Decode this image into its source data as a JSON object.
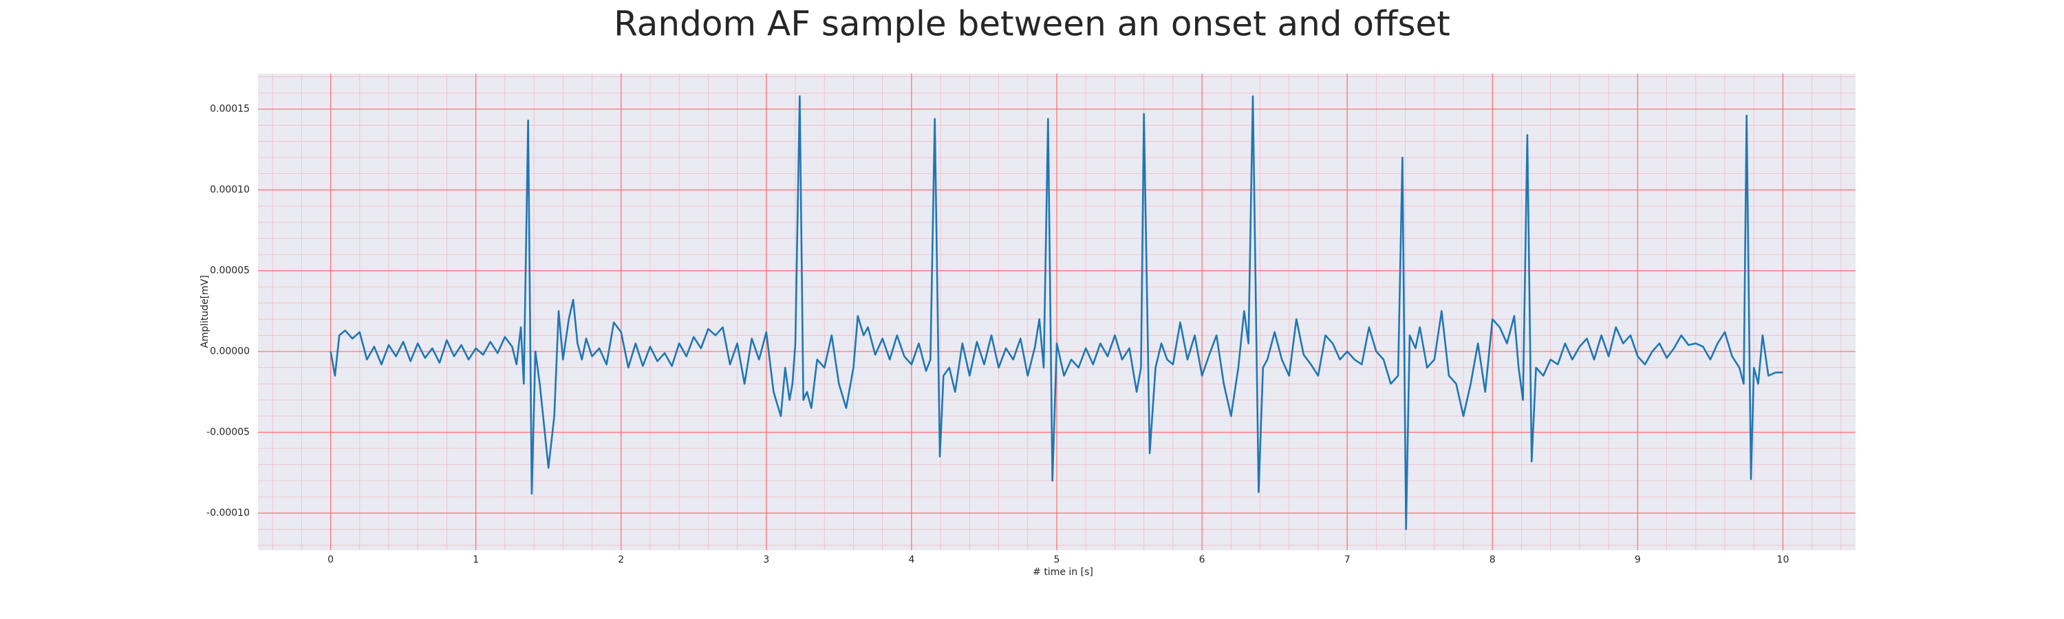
{
  "chart_data": {
    "type": "line",
    "title": "Random AF sample between an onset and offset",
    "xlabel": "# time in [s]",
    "ylabel": "Amplitude[mV]",
    "xlim": [
      -0.5,
      10.5
    ],
    "ylim": [
      -0.000123,
      0.000172
    ],
    "xticks": [
      0,
      1,
      2,
      3,
      4,
      5,
      6,
      7,
      8,
      9,
      10
    ],
    "yticks": [
      {
        "value": -0.0001,
        "label": "-0.00010"
      },
      -5e-05,
      {
        "value": 0,
        "label": "0.00000"
      },
      5e-05,
      {
        "value": 0.0001,
        "label": "0.00010"
      },
      0.00015
    ],
    "grid": true,
    "minor_grid": true,
    "x": [
      0,
      0.03,
      0.06,
      0.1,
      0.15,
      0.2,
      0.25,
      0.3,
      0.35,
      0.4,
      0.45,
      0.5,
      0.55,
      0.6,
      0.65,
      0.7,
      0.75,
      0.8,
      0.85,
      0.9,
      0.95,
      1.0,
      1.05,
      1.1,
      1.15,
      1.2,
      1.25,
      1.28,
      1.31,
      1.33,
      1.36,
      1.385,
      1.41,
      1.44,
      1.5,
      1.54,
      1.57,
      1.6,
      1.64,
      1.67,
      1.7,
      1.73,
      1.76,
      1.8,
      1.85,
      1.9,
      1.95,
      2.0,
      2.05,
      2.1,
      2.15,
      2.2,
      2.25,
      2.3,
      2.35,
      2.4,
      2.45,
      2.5,
      2.55,
      2.6,
      2.65,
      2.7,
      2.75,
      2.8,
      2.85,
      2.9,
      2.95,
      3.0,
      3.05,
      3.1,
      3.13,
      3.16,
      3.18,
      3.2,
      3.23,
      3.255,
      3.28,
      3.31,
      3.35,
      3.4,
      3.45,
      3.5,
      3.55,
      3.6,
      3.63,
      3.67,
      3.7,
      3.75,
      3.8,
      3.85,
      3.9,
      3.95,
      4.0,
      4.05,
      4.1,
      4.13,
      4.16,
      4.195,
      4.22,
      4.26,
      4.3,
      4.35,
      4.4,
      4.45,
      4.5,
      4.55,
      4.6,
      4.65,
      4.7,
      4.75,
      4.8,
      4.85,
      4.88,
      4.91,
      4.94,
      4.97,
      5.0,
      5.05,
      5.1,
      5.15,
      5.2,
      5.25,
      5.3,
      5.35,
      5.4,
      5.45,
      5.5,
      5.55,
      5.58,
      5.6,
      5.64,
      5.68,
      5.72,
      5.76,
      5.8,
      5.85,
      5.9,
      5.95,
      6.0,
      6.05,
      6.1,
      6.15,
      6.2,
      6.25,
      6.29,
      6.32,
      6.35,
      6.39,
      6.42,
      6.45,
      6.5,
      6.55,
      6.6,
      6.65,
      6.7,
      6.75,
      6.8,
      6.85,
      6.9,
      6.95,
      7.0,
      7.05,
      7.1,
      7.15,
      7.2,
      7.25,
      7.3,
      7.35,
      7.38,
      7.405,
      7.43,
      7.47,
      7.5,
      7.55,
      7.6,
      7.65,
      7.7,
      7.75,
      7.8,
      7.85,
      7.9,
      7.95,
      8.0,
      8.05,
      8.1,
      8.15,
      8.18,
      8.21,
      8.24,
      8.27,
      8.3,
      8.35,
      8.4,
      8.45,
      8.5,
      8.55,
      8.6,
      8.65,
      8.7,
      8.75,
      8.8,
      8.85,
      8.9,
      8.95,
      9.0,
      9.05,
      9.1,
      9.15,
      9.2,
      9.25,
      9.3,
      9.35,
      9.4,
      9.45,
      9.5,
      9.55,
      9.6,
      9.65,
      9.7,
      9.73,
      9.75,
      9.78,
      9.8,
      9.83,
      9.86,
      9.9,
      9.95,
      10.0
    ],
    "series": [
      {
        "color": "#1f77b4",
        "values": [
          0,
          -1.5e-05,
          1e-05,
          1.3e-05,
          8e-06,
          1.2e-05,
          -5e-06,
          3e-06,
          -8e-06,
          4e-06,
          -3e-06,
          6e-06,
          -6e-06,
          5e-06,
          -4e-06,
          2e-06,
          -7e-06,
          7e-06,
          -3e-06,
          4e-06,
          -5e-06,
          2e-06,
          -2e-06,
          6e-06,
          -1e-06,
          9e-06,
          3e-06,
          -8e-06,
          1.5e-05,
          -2e-05,
          0.000143,
          -8.8e-05,
          0,
          -2e-05,
          -7.2e-05,
          -4e-05,
          2.5e-05,
          -5e-06,
          2e-05,
          3.2e-05,
          5e-06,
          -5e-06,
          8e-06,
          -3e-06,
          2e-06,
          -8e-06,
          1.8e-05,
          1.2e-05,
          -1e-05,
          5e-06,
          -9e-06,
          3e-06,
          -6e-06,
          -1e-06,
          -9e-06,
          5e-06,
          -3e-06,
          9e-06,
          2e-06,
          1.4e-05,
          1e-05,
          1.5e-05,
          -8e-06,
          5e-06,
          -2e-05,
          8e-06,
          -5e-06,
          1.2e-05,
          -2.5e-05,
          -4e-05,
          -1e-05,
          -3e-05,
          -2e-05,
          5e-06,
          0.000158,
          -3e-05,
          -2.5e-05,
          -3.5e-05,
          -5e-06,
          -1e-05,
          1e-05,
          -2e-05,
          -3.5e-05,
          -1e-05,
          2.2e-05,
          1e-05,
          1.5e-05,
          -2e-06,
          8e-06,
          -5e-06,
          1e-05,
          -3e-06,
          -8e-06,
          5e-06,
          -1.2e-05,
          -5e-06,
          0.000144,
          -6.5e-05,
          -1.5e-05,
          -1e-05,
          -2.5e-05,
          5e-06,
          -1.5e-05,
          6e-06,
          -8e-06,
          1e-05,
          -1e-05,
          2e-06,
          -5e-06,
          8e-06,
          -1.5e-05,
          3e-06,
          2e-05,
          -1e-05,
          0.000144,
          -8e-05,
          5e-06,
          -1.5e-05,
          -5e-06,
          -1e-05,
          2e-06,
          -8e-06,
          5e-06,
          -3e-06,
          1e-05,
          -5e-06,
          2e-06,
          -2.5e-05,
          -1e-05,
          0.000147,
          -6.3e-05,
          -1e-05,
          5e-06,
          -5e-06,
          -8e-06,
          1.8e-05,
          -5e-06,
          1e-05,
          -1.5e-05,
          -2e-06,
          1e-05,
          -2e-05,
          -4e-05,
          -1e-05,
          2.5e-05,
          5e-06,
          0.000158,
          -8.7e-05,
          -1e-05,
          -5e-06,
          1.2e-05,
          -5e-06,
          -1.5e-05,
          2e-05,
          -2e-06,
          -8e-06,
          -1.5e-05,
          1e-05,
          5e-06,
          -5e-06,
          0,
          -5e-06,
          -8e-06,
          1.5e-05,
          0,
          -5e-06,
          -2e-05,
          -1.5e-05,
          0.00012,
          -0.00011,
          1e-05,
          2e-06,
          1.5e-05,
          -1e-05,
          -5e-06,
          2.5e-05,
          -1.5e-05,
          -2e-05,
          -4e-05,
          -2e-05,
          5e-06,
          -2.5e-05,
          2e-05,
          1.5e-05,
          5e-06,
          2.2e-05,
          -1e-05,
          -3e-05,
          0.000134,
          -6.8e-05,
          -1e-05,
          -1.5e-05,
          -5e-06,
          -8e-06,
          5e-06,
          -5e-06,
          3e-06,
          8e-06,
          -5e-06,
          1e-05,
          -3e-06,
          1.5e-05,
          5e-06,
          1e-05,
          -3e-06,
          -8e-06,
          0,
          5e-06,
          -4e-06,
          2e-06,
          1e-05,
          4e-06,
          5e-06,
          3e-06,
          -5e-06,
          5e-06,
          1.2e-05,
          -3e-06,
          -1e-05,
          -2e-05,
          0.000146,
          -7.9e-05,
          -1e-05,
          -2e-05,
          1e-05,
          -1.5e-05,
          -1.3e-05,
          -1.3e-05
        ]
      }
    ]
  }
}
